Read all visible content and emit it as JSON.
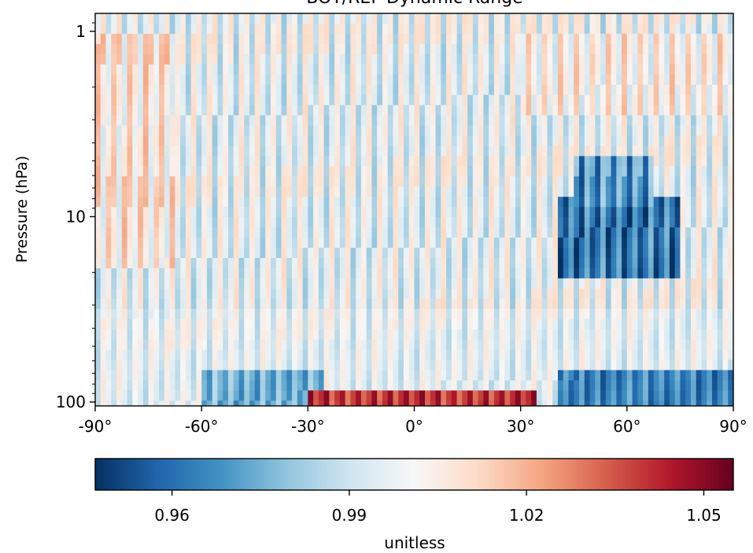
{
  "chart_data": {
    "type": "heatmap",
    "title": "BOT/REF Dynamic Range",
    "ylabel": "Pressure (hPa)",
    "xlabel": "",
    "x_range": [
      -90,
      90
    ],
    "x_ticks": [
      -90,
      -60,
      -30,
      0,
      30,
      60,
      90
    ],
    "x_tick_labels": [
      "-90°",
      "-60°",
      "-30°",
      "0°",
      "30°",
      "60°",
      "90°"
    ],
    "y_scale": "log",
    "y_range": [
      0.8,
      105
    ],
    "y_inverted": true,
    "y_ticks": [
      1,
      10,
      100
    ],
    "y_tick_labels": [
      "1",
      "10",
      "100"
    ],
    "colormap": "RdBu_r",
    "colorbar": {
      "label": "unitless",
      "range": [
        0.947,
        1.055
      ],
      "ticks": [
        0.96,
        0.99,
        1.02,
        1.05
      ],
      "tick_labels": [
        "0.96",
        "0.99",
        "1.02",
        "1.05"
      ],
      "orientation": "horizontal"
    },
    "regions": [
      {
        "lat": [
          -90,
          -68
        ],
        "p": [
          1,
          20
        ],
        "value": 1.006
      },
      {
        "lat": [
          -90,
          -30
        ],
        "p": [
          20,
          60
        ],
        "value": 0.996
      },
      {
        "lat": [
          -60,
          -25
        ],
        "p": [
          65,
          103
        ],
        "value": 0.975
      },
      {
        "lat": [
          -30,
          35
        ],
        "p": [
          88,
          103
        ],
        "value": 1.04
      },
      {
        "lat": [
          40,
          75
        ],
        "p": [
          8,
          22
        ],
        "value": 0.962
      },
      {
        "lat": [
          45,
          68
        ],
        "p": [
          5,
          9
        ],
        "value": 0.968
      },
      {
        "lat": [
          40,
          90
        ],
        "p": [
          65,
          103
        ],
        "value": 0.965
      },
      {
        "lat": [
          30,
          90
        ],
        "p": [
          1,
          3
        ],
        "value": 1.004
      },
      {
        "lat": [
          -30,
          30
        ],
        "p": [
          1,
          60
        ],
        "value": 0.996
      }
    ]
  }
}
